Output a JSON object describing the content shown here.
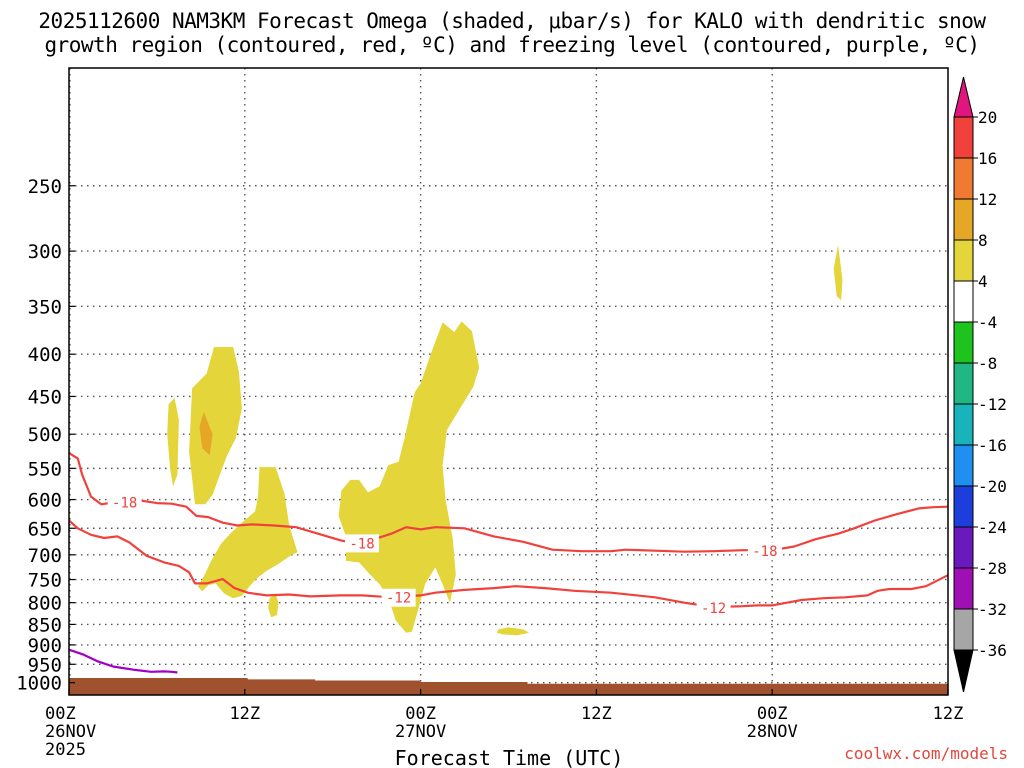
{
  "title": {
    "line1": "2025112600 NAM3KM Forecast Omega (shaded, μbar/s) for KALO with dendritic snow",
    "line2": "growth region (contoured, red, ºC) and freezing level (contoured, purple, ºC)"
  },
  "credit": "coolwx.com/models",
  "chart_data": {
    "type": "time-height",
    "title": "2025112600 NAM3KM Forecast Omega (shaded, μbar/s) for KALO with dendritic snow growth region (contoured, red, ºC) and freezing level (contoured, purple, ºC)",
    "xlabel": "Forecast Time (UTC)",
    "ylabel": "",
    "xlim_hours": [
      0,
      60
    ],
    "ylim_hpa": [
      1035,
      180
    ],
    "x_ticks": [
      {
        "hour": 0,
        "label": "00Z",
        "sub": "26NOV",
        "sub2": "2025"
      },
      {
        "hour": 12,
        "label": "12Z",
        "sub": "",
        "sub2": ""
      },
      {
        "hour": 24,
        "label": "00Z",
        "sub": "27NOV",
        "sub2": ""
      },
      {
        "hour": 36,
        "label": "12Z",
        "sub": "",
        "sub2": ""
      },
      {
        "hour": 48,
        "label": "00Z",
        "sub": "28NOV",
        "sub2": ""
      },
      {
        "hour": 60,
        "label": "12Z",
        "sub": "",
        "sub2": ""
      }
    ],
    "y_ticks": [
      250,
      300,
      350,
      400,
      450,
      500,
      550,
      600,
      650,
      700,
      750,
      800,
      850,
      900,
      950,
      1000
    ],
    "grid": true,
    "log_pressure_axis": true,
    "colorbar": {
      "levels": [
        20,
        16,
        12,
        8,
        4,
        -4,
        -8,
        -12,
        -16,
        -20,
        -24,
        -28,
        -32,
        -36
      ],
      "colors": [
        "#f0413c",
        "#f07a32",
        "#e6a626",
        "#e3d53a",
        "#ffffff",
        "#1ec31e",
        "#21b785",
        "#19b3bc",
        "#1f8ff0",
        "#1c3fdc",
        "#6a19bd",
        "#a00fb4",
        "#a6a6a6"
      ],
      "top_arrow_color": "#e0157d",
      "bottom_arrow_color": "#000000"
    },
    "series": [
      {
        "name": "-18",
        "color": "#f0413c",
        "label_at": [
          [
            3.8,
            605
          ],
          [
            20.0,
            678
          ],
          [
            47.5,
            693
          ]
        ],
        "points": [
          [
            0,
            527
          ],
          [
            0.6,
            535
          ],
          [
            0.9,
            560
          ],
          [
            1.5,
            595
          ],
          [
            2.2,
            608
          ],
          [
            3,
            605
          ],
          [
            4,
            600
          ],
          [
            5,
            602
          ],
          [
            6,
            606
          ],
          [
            7,
            607
          ],
          [
            8,
            612
          ],
          [
            8.7,
            628
          ],
          [
            9.5,
            630
          ],
          [
            10.5,
            640
          ],
          [
            11.5,
            645
          ],
          [
            12.5,
            643
          ],
          [
            14,
            645
          ],
          [
            15.5,
            648
          ],
          [
            17,
            660
          ],
          [
            18.5,
            672
          ],
          [
            19.5,
            678
          ],
          [
            20.5,
            673
          ],
          [
            22,
            660
          ],
          [
            23,
            648
          ],
          [
            24,
            652
          ],
          [
            25,
            648
          ],
          [
            27,
            650
          ],
          [
            29,
            665
          ],
          [
            31,
            675
          ],
          [
            33,
            690
          ],
          [
            35,
            693
          ],
          [
            37,
            693
          ],
          [
            38,
            690
          ],
          [
            40,
            692
          ],
          [
            42,
            694
          ],
          [
            44,
            693
          ],
          [
            46,
            691
          ],
          [
            48,
            691
          ],
          [
            49.5,
            684
          ],
          [
            51,
            670
          ],
          [
            52.5,
            660
          ],
          [
            53.5,
            651
          ],
          [
            55,
            636
          ],
          [
            56.5,
            625
          ],
          [
            58,
            615
          ],
          [
            59,
            613
          ],
          [
            60,
            612
          ]
        ]
      },
      {
        "name": "-12",
        "color": "#f0413c",
        "label_at": [
          [
            22.5,
            789
          ],
          [
            44.0,
            812
          ]
        ],
        "points": [
          [
            0,
            636
          ],
          [
            0.6,
            650
          ],
          [
            1.5,
            662
          ],
          [
            2.4,
            668
          ],
          [
            3.3,
            665
          ],
          [
            4.1,
            676
          ],
          [
            5.3,
            702
          ],
          [
            6.5,
            715
          ],
          [
            7.5,
            722
          ],
          [
            8.2,
            735
          ],
          [
            8.6,
            758
          ],
          [
            9.4,
            758
          ],
          [
            10.5,
            749
          ],
          [
            11.3,
            768
          ],
          [
            12.2,
            778
          ],
          [
            13.5,
            784
          ],
          [
            15,
            782
          ],
          [
            16.5,
            786
          ],
          [
            18.5,
            784
          ],
          [
            20,
            784
          ],
          [
            22,
            788
          ],
          [
            23,
            786
          ],
          [
            24,
            784
          ],
          [
            25,
            778
          ],
          [
            27,
            772
          ],
          [
            29,
            768
          ],
          [
            30.5,
            764
          ],
          [
            32.5,
            768
          ],
          [
            34.5,
            774
          ],
          [
            37,
            778
          ],
          [
            40,
            788
          ],
          [
            42,
            800
          ],
          [
            44,
            810
          ],
          [
            46,
            808
          ],
          [
            47,
            806
          ],
          [
            48,
            806
          ],
          [
            49,
            800
          ],
          [
            50,
            794
          ],
          [
            51.5,
            790
          ],
          [
            53,
            788
          ],
          [
            54.5,
            784
          ],
          [
            55.2,
            774
          ],
          [
            56,
            770
          ],
          [
            57.5,
            770
          ],
          [
            58.5,
            764
          ],
          [
            60,
            741
          ]
        ]
      },
      {
        "name": "0",
        "color": "#a000c8",
        "label_at": [],
        "points": [
          [
            0,
            912
          ],
          [
            1,
            925
          ],
          [
            2,
            943
          ],
          [
            3,
            956
          ],
          [
            4.5,
            965
          ],
          [
            5.6,
            970
          ],
          [
            6.5,
            969
          ],
          [
            7,
            970
          ],
          [
            7.4,
            972
          ]
        ]
      }
    ],
    "shaded_regions": [
      {
        "range": [
          4,
          8
        ],
        "color": "#e3d53a",
        "polygon": [
          [
            6.8,
            460
          ],
          [
            7.2,
            452
          ],
          [
            7.5,
            480
          ],
          [
            7.4,
            560
          ],
          [
            7.1,
            578
          ],
          [
            6.9,
            550
          ],
          [
            6.7,
            500
          ]
        ]
      },
      {
        "range": [
          4,
          8
        ],
        "color": "#e3d53a",
        "polygon": [
          [
            8.6,
            608
          ],
          [
            8.2,
            525
          ],
          [
            8.4,
            440
          ],
          [
            9.4,
            422
          ],
          [
            9.9,
            392
          ],
          [
            11.2,
            392
          ],
          [
            11.6,
            420
          ],
          [
            11.8,
            465
          ],
          [
            11.4,
            505
          ],
          [
            10.8,
            530
          ],
          [
            10.3,
            560
          ],
          [
            9.8,
            592
          ],
          [
            9.3,
            608
          ]
        ]
      },
      {
        "range": [
          8,
          12
        ],
        "color": "#e6a626",
        "polygon": [
          [
            9.2,
            470
          ],
          [
            9.8,
            500
          ],
          [
            9.6,
            530
          ],
          [
            9.1,
            520
          ],
          [
            8.9,
            490
          ]
        ]
      },
      {
        "range": [
          4,
          8
        ],
        "color": "#e3d53a",
        "polygon": [
          [
            8.8,
            765
          ],
          [
            9.3,
            738
          ],
          [
            9.7,
            712
          ],
          [
            10.4,
            678
          ],
          [
            11.0,
            660
          ],
          [
            11.8,
            640
          ],
          [
            12.7,
            620
          ],
          [
            12.9,
            595
          ],
          [
            13.0,
            548
          ],
          [
            14.1,
            548
          ],
          [
            14.7,
            590
          ],
          [
            15.0,
            640
          ],
          [
            15.2,
            660
          ],
          [
            15.6,
            695
          ],
          [
            15.2,
            700
          ],
          [
            14.3,
            718
          ],
          [
            13.5,
            732
          ],
          [
            12.8,
            748
          ],
          [
            12.3,
            765
          ],
          [
            11.8,
            785
          ],
          [
            11.2,
            790
          ],
          [
            10.6,
            780
          ],
          [
            10.0,
            758
          ],
          [
            9.5,
            762
          ],
          [
            9.1,
            775
          ]
        ]
      },
      {
        "range": [
          4,
          8
        ],
        "color": "#e3d53a",
        "polygon": [
          [
            13.7,
            790
          ],
          [
            14.1,
            780
          ],
          [
            14.3,
            800
          ],
          [
            14.2,
            828
          ],
          [
            13.8,
            833
          ],
          [
            13.6,
            812
          ]
        ]
      },
      {
        "range": [
          4,
          8
        ],
        "color": "#e3d53a",
        "polygon": [
          [
            18.9,
            712
          ],
          [
            18.9,
            665
          ],
          [
            18.4,
            628
          ],
          [
            18.6,
            585
          ],
          [
            19.2,
            568
          ],
          [
            19.8,
            568
          ],
          [
            20.4,
            588
          ],
          [
            21.2,
            578
          ],
          [
            21.8,
            545
          ],
          [
            22.5,
            540
          ],
          [
            22.9,
            506
          ],
          [
            23.3,
            470
          ],
          [
            23.6,
            445
          ],
          [
            24.0,
            434
          ],
          [
            24.8,
            395
          ],
          [
            25.5,
            366
          ],
          [
            26.3,
            376
          ],
          [
            26.8,
            365
          ],
          [
            27.5,
            375
          ],
          [
            28.0,
            415
          ],
          [
            27.6,
            438
          ],
          [
            26.8,
            462
          ],
          [
            25.8,
            494
          ],
          [
            25.5,
            545
          ],
          [
            25.7,
            600
          ],
          [
            26.2,
            670
          ],
          [
            26.4,
            740
          ],
          [
            26.0,
            800
          ],
          [
            25.5,
            760
          ],
          [
            25.0,
            725
          ],
          [
            24.3,
            760
          ],
          [
            23.8,
            820
          ],
          [
            23.4,
            868
          ],
          [
            23.0,
            870
          ],
          [
            22.3,
            840
          ],
          [
            21.8,
            790
          ],
          [
            21.2,
            760
          ],
          [
            20.5,
            738
          ],
          [
            19.8,
            715
          ]
        ]
      },
      {
        "range": [
          4,
          8
        ],
        "color": "#e3d53a",
        "polygon": [
          [
            29.3,
            862
          ],
          [
            30,
            857
          ],
          [
            31,
            862
          ],
          [
            31.4,
            870
          ],
          [
            30.6,
            876
          ],
          [
            29.6,
            874
          ],
          [
            29.2,
            870
          ]
        ]
      },
      {
        "range": [
          4,
          8
        ],
        "color": "#e3d53a",
        "polygon": [
          [
            52.2,
            315
          ],
          [
            52.5,
            295
          ],
          [
            52.8,
            325
          ],
          [
            52.7,
            344
          ],
          [
            52.4,
            340
          ]
        ]
      }
    ],
    "terrain": {
      "color": "#a0512e",
      "steps": [
        [
          0,
          987
        ],
        [
          12.2,
          987
        ],
        [
          12.2,
          991
        ],
        [
          16.8,
          991
        ],
        [
          16.8,
          994
        ],
        [
          24.0,
          994
        ],
        [
          24.0,
          998
        ],
        [
          31.3,
          998
        ],
        [
          31.3,
          1003
        ],
        [
          60,
          1003
        ]
      ]
    }
  }
}
